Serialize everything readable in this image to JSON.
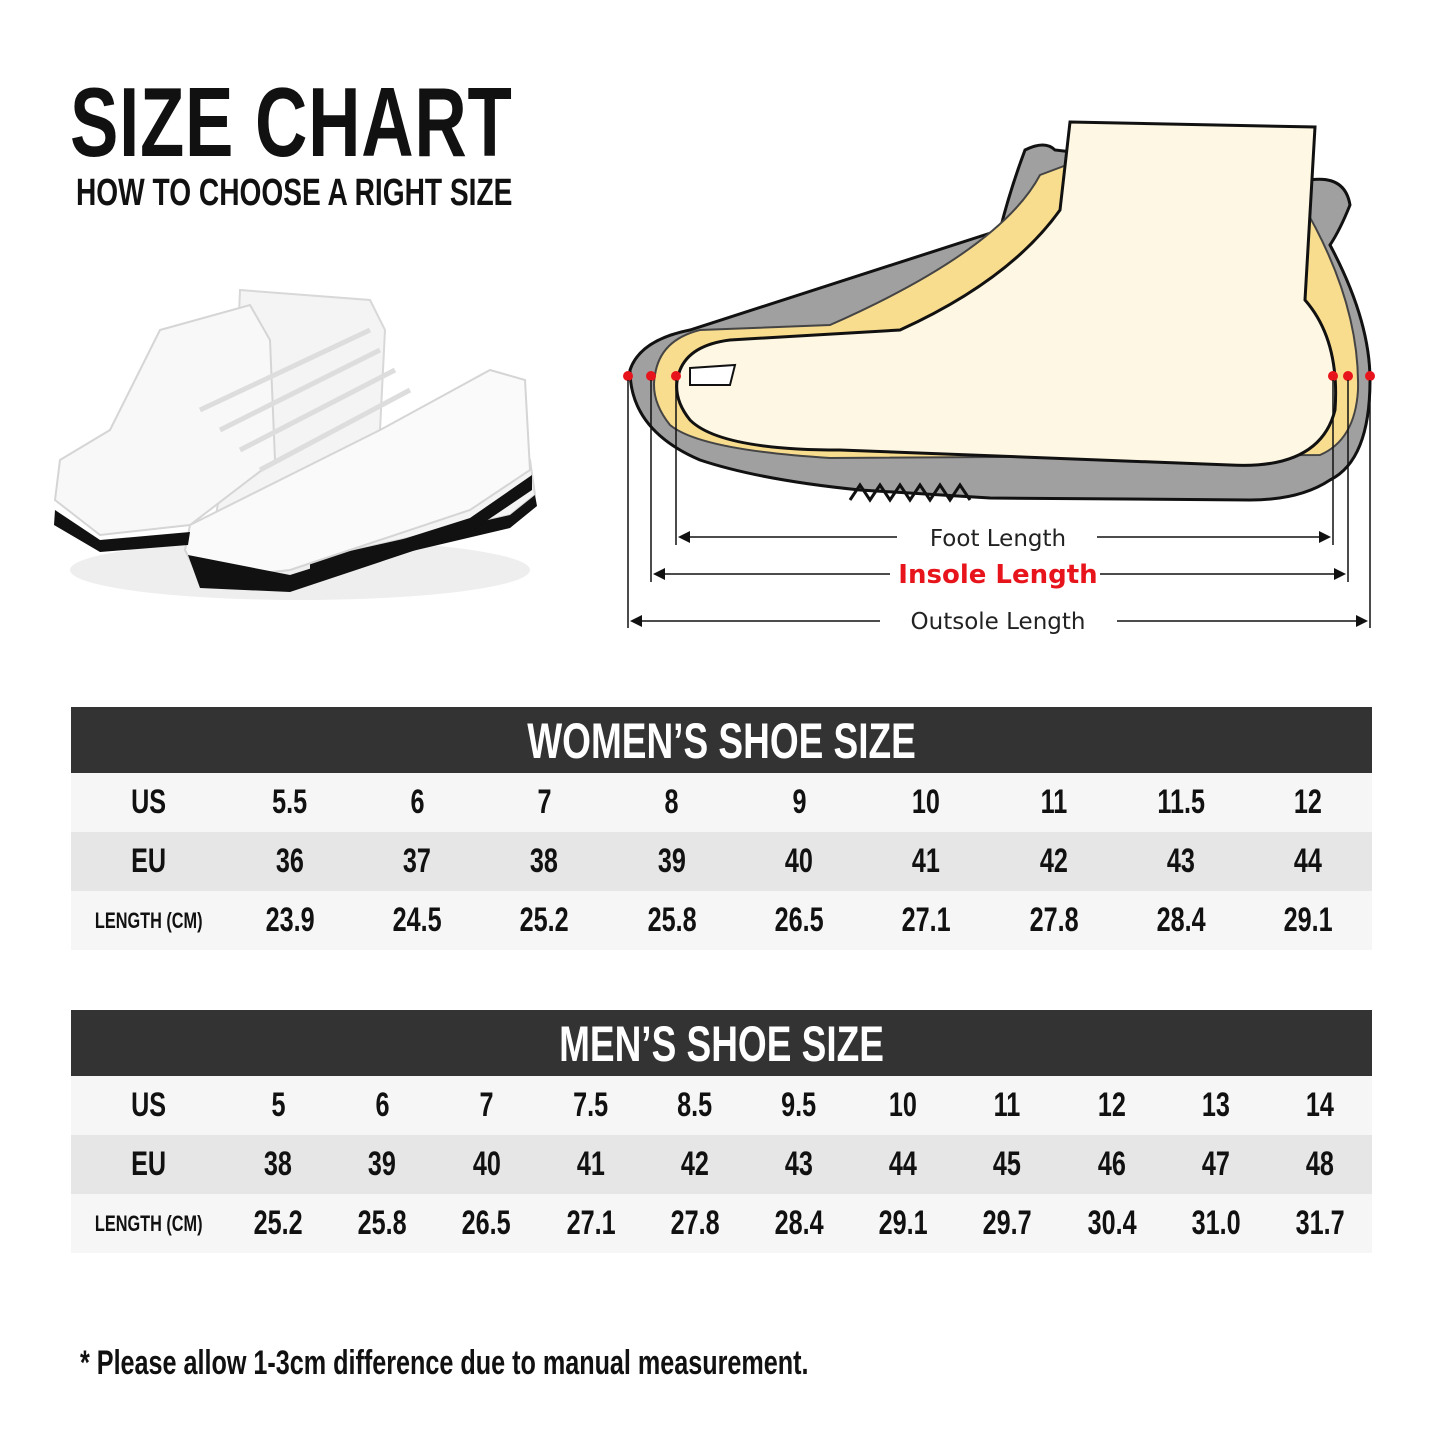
{
  "header": {
    "title": "SIZE CHART",
    "subtitle": "HOW TO CHOOSE A RIGHT SIZE"
  },
  "diagram": {
    "foot_length": "Foot Length",
    "insole_length": "Insole Length",
    "outsole_length": "Outsole Length",
    "colors": {
      "insole_label": "#e8141b",
      "sole": "#a0a0a0",
      "foot": "#fdf7e3",
      "insole": "#f9dd8e"
    }
  },
  "women": {
    "title": "WOMEN’S SHOE SIZE",
    "rows": [
      {
        "label": "US",
        "values": [
          "5.5",
          "6",
          "7",
          "8",
          "9",
          "10",
          "11",
          "11.5",
          "12"
        ]
      },
      {
        "label": "EU",
        "values": [
          "36",
          "37",
          "38",
          "39",
          "40",
          "41",
          "42",
          "43",
          "44"
        ]
      },
      {
        "label": "LENGTH (CM)",
        "values": [
          "23.9",
          "24.5",
          "25.2",
          "25.8",
          "26.5",
          "27.1",
          "27.8",
          "28.4",
          "29.1"
        ]
      }
    ]
  },
  "men": {
    "title": "MEN’S SHOE SIZE",
    "rows": [
      {
        "label": "US",
        "values": [
          "5",
          "6",
          "7",
          "7.5",
          "8.5",
          "9.5",
          "10",
          "11",
          "12",
          "13",
          "14"
        ]
      },
      {
        "label": "EU",
        "values": [
          "38",
          "39",
          "40",
          "41",
          "42",
          "43",
          "44",
          "45",
          "46",
          "47",
          "48"
        ]
      },
      {
        "label": "LENGTH (CM)",
        "values": [
          "25.2",
          "25.8",
          "26.5",
          "27.1",
          "27.8",
          "28.4",
          "29.1",
          "29.7",
          "30.4",
          "31.0",
          "31.7"
        ]
      }
    ]
  },
  "footnote": "* Please allow 1-3cm difference due to manual measurement."
}
